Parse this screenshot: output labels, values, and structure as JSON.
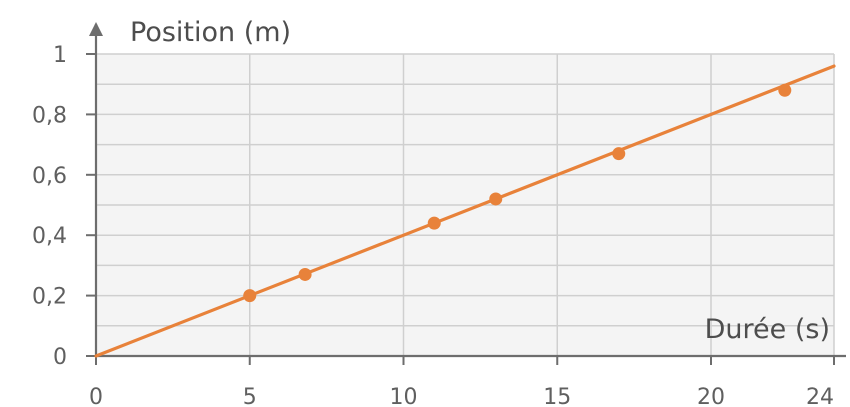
{
  "chart_data": {
    "type": "line",
    "xlabel": "Durée (s)",
    "ylabel": "Position (m)",
    "xlim": [
      0,
      24
    ],
    "ylim": [
      0,
      1
    ],
    "x_ticks": [
      0,
      5,
      10,
      15,
      20,
      24
    ],
    "x_tick_labels": [
      "0",
      "5",
      "10",
      "15",
      "20",
      "24"
    ],
    "y_ticks": [
      0,
      0.2,
      0.4,
      0.6,
      0.8,
      1
    ],
    "y_tick_labels": [
      "0",
      "0,2",
      "0,4",
      "0,6",
      "0,8",
      "1"
    ],
    "grid": true,
    "series": [
      {
        "kind": "points",
        "x": [
          5,
          6.8,
          11,
          13,
          17,
          22.4
        ],
        "y": [
          0.2,
          0.27,
          0.44,
          0.52,
          0.67,
          0.88
        ]
      },
      {
        "kind": "fit-line",
        "x": [
          0,
          24
        ],
        "y": [
          0,
          0.96
        ]
      }
    ],
    "colors": {
      "series": "#e8823a",
      "grid": "#cfcfcf",
      "axis": "#6d6d6d",
      "text": "#5f5f5f",
      "plot_background": "#f4f4f4"
    }
  }
}
